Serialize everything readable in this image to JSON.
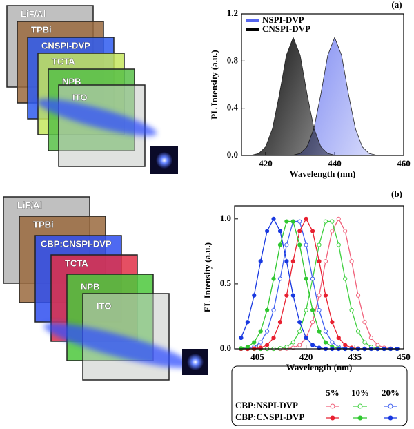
{
  "devices": [
    {
      "layers": [
        {
          "label": "LiF/Al",
          "color": "#b5b5b5"
        },
        {
          "label": "TPBi",
          "color": "#9a6a3e"
        },
        {
          "label": "CNSPI-DVP",
          "color": "#2f5cf0"
        },
        {
          "label": "TCTA",
          "color": "#c6e65e"
        },
        {
          "label": "NPB",
          "color": "#58bf48"
        },
        {
          "label": "ITO",
          "color": "#c6cac6"
        }
      ]
    },
    {
      "layers": [
        {
          "label": "LiF/Al",
          "color": "#b5b5b5"
        },
        {
          "label": "TPBi",
          "color": "#9a6a3e"
        },
        {
          "label": "CBP:CNSPI-DVP",
          "color": "#2f4ff0"
        },
        {
          "label": "TCTA",
          "color": "#e03048"
        },
        {
          "label": "NPB",
          "color": "#4cc83c"
        },
        {
          "label": "ITO",
          "color": "#c6cac6"
        }
      ]
    }
  ],
  "chart_data": [
    {
      "type": "area",
      "panel_label": "(a)",
      "xlabel": "Wavelength (nm)",
      "ylabel": "PL Intensity (a.u.)",
      "xlim": [
        413,
        460
      ],
      "ylim": [
        0,
        1.2
      ],
      "xticks": [
        420,
        440,
        460
      ],
      "yticks": [
        {
          "value": 0,
          "label": "0.0"
        },
        0.4,
        0.8,
        1.2
      ],
      "x": [
        414,
        416,
        418,
        420,
        422,
        424,
        426,
        428,
        430,
        432,
        434,
        436,
        438,
        440,
        442,
        444,
        446,
        448,
        450,
        452,
        454,
        456,
        458,
        460
      ],
      "series": [
        {
          "name": "NSPI-DVP",
          "color": "#5565ee",
          "values": [
            0,
            0,
            0,
            0,
            0,
            0,
            0,
            0.003,
            0.017,
            0.073,
            0.23,
            0.52,
            0.849,
            1,
            0.849,
            0.52,
            0.23,
            0.073,
            0.017,
            0.003,
            0,
            0,
            0,
            0
          ]
        },
        {
          "name": "CNSPI-DVP",
          "color": "#000000",
          "values": [
            0,
            0.003,
            0.017,
            0.073,
            0.23,
            0.52,
            0.849,
            1,
            0.849,
            0.52,
            0.23,
            0.073,
            0.017,
            0.003,
            0,
            0,
            0,
            0,
            0,
            0,
            0,
            0,
            0,
            0
          ]
        }
      ]
    },
    {
      "type": "line",
      "panel_label": "(b)",
      "xlabel": "Wavelength (nm)",
      "ylabel": "EL Intensity (a.u.)",
      "xlim": [
        398,
        450
      ],
      "ylim": [
        0,
        1.1
      ],
      "xticks": [
        405,
        420,
        435,
        450
      ],
      "yticks": [
        {
          "value": 0,
          "label": "0.0"
        },
        0.5,
        {
          "value": 1,
          "label": "1.0"
        }
      ],
      "concentration_labels": [
        "5%",
        "10%",
        "20%"
      ],
      "x": [
        400,
        402,
        404,
        406,
        408,
        410,
        412,
        414,
        416,
        418,
        420,
        422,
        424,
        426,
        428,
        430,
        432,
        434,
        436,
        438,
        440,
        442,
        444,
        446,
        448
      ],
      "series": [
        {
          "name": "CBP:NSPI-DVP",
          "hollow": true,
          "concentrations": [
            {
              "color": "#f0607a",
              "values": [
                0,
                0,
                0,
                0,
                0,
                0,
                0,
                0.002,
                0.008,
                0.029,
                0.085,
                0.206,
                0.411,
                0.674,
                0.906,
                1,
                0.906,
                0.674,
                0.411,
                0.206,
                0.085,
                0.029,
                0.008,
                0.002,
                0
              ]
            },
            {
              "color": "#40d040",
              "values": [
                0,
                0,
                0,
                0,
                0,
                0,
                0.004,
                0.015,
                0.05,
                0.135,
                0.298,
                0.539,
                0.8,
                0.98,
                0.98,
                0.8,
                0.539,
                0.298,
                0.135,
                0.05,
                0.015,
                0.004,
                0,
                0,
                0
              ]
            },
            {
              "color": "#4060f0",
              "values": [
                0,
                0.004,
                0.015,
                0.05,
                0.135,
                0.298,
                0.539,
                0.8,
                0.98,
                0.98,
                0.8,
                0.539,
                0.298,
                0.135,
                0.05,
                0.015,
                0.004,
                0,
                0,
                0,
                0,
                0,
                0,
                0,
                0
              ]
            }
          ]
        },
        {
          "name": "CBP:CNSPI-DVP",
          "hollow": false,
          "concentrations": [
            {
              "color": "#e82030",
              "values": [
                0,
                0,
                0.002,
                0.008,
                0.029,
                0.085,
                0.206,
                0.411,
                0.674,
                0.906,
                1,
                0.906,
                0.674,
                0.411,
                0.206,
                0.085,
                0.029,
                0.008,
                0.002,
                0,
                0,
                0,
                0,
                0,
                0
              ]
            },
            {
              "color": "#30c830",
              "values": [
                0.004,
                0.015,
                0.05,
                0.135,
                0.298,
                0.539,
                0.8,
                0.98,
                0.98,
                0.8,
                0.539,
                0.298,
                0.135,
                0.05,
                0.015,
                0.004,
                0,
                0,
                0,
                0,
                0,
                0,
                0,
                0,
                0
              ]
            },
            {
              "color": "#1838e0",
              "values": [
                0.085,
                0.206,
                0.411,
                0.674,
                0.906,
                1,
                0.906,
                0.674,
                0.411,
                0.206,
                0.085,
                0.029,
                0.008,
                0,
                0,
                0,
                0,
                0,
                0,
                0,
                0,
                0,
                0,
                0,
                0
              ]
            }
          ]
        }
      ]
    }
  ]
}
